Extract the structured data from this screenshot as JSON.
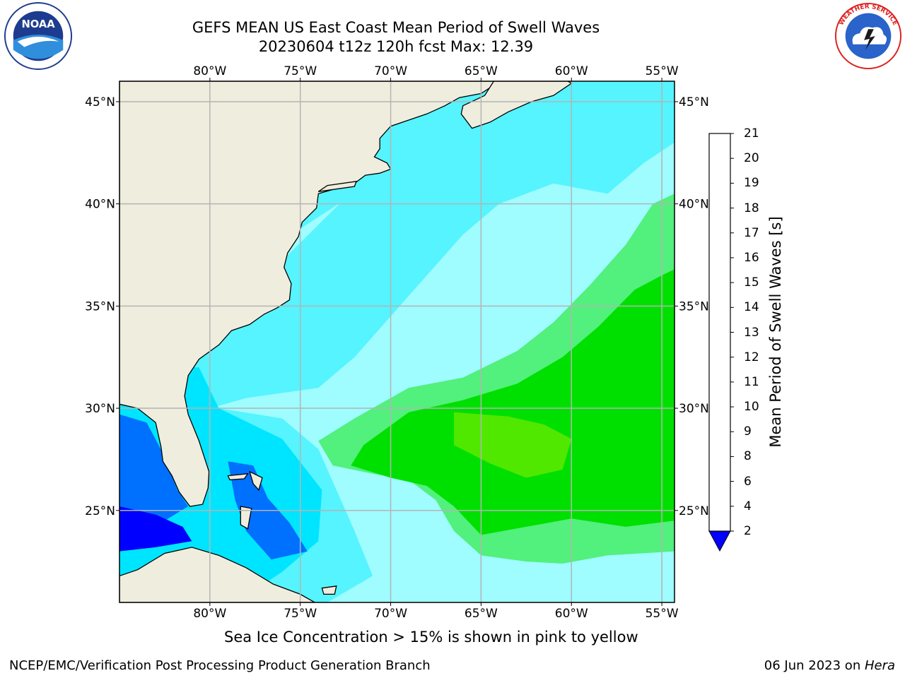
{
  "title_line1": "GEFS MEAN US East Coast Mean Period of Swell Waves",
  "title_line2": "20230604 t12z 120h fcst   Max: 12.39",
  "logos": {
    "left": {
      "name": "NOAA",
      "text": "NOAA",
      "ring": "NATIONAL OCEANIC AND ATMOSPHERIC ADMINISTRATION · U.S. DEPARTMENT OF COMMERCE"
    },
    "right": {
      "name": "National Weather Service",
      "ring": "NATIONAL WEATHER SERVICE"
    }
  },
  "map": {
    "lon_range": [
      -85,
      -54.3
    ],
    "lat_range": [
      20.5,
      46
    ],
    "lon_ticks": [
      "80°W",
      "75°W",
      "70°W",
      "65°W",
      "60°W",
      "55°W"
    ],
    "lat_ticks": [
      "25°N",
      "30°N",
      "35°N",
      "40°N",
      "45°N"
    ],
    "grid": true,
    "colors": {
      "land": "#efedde",
      "coast": "#000000",
      "grid": "#b4b4b4"
    }
  },
  "colorbar": {
    "title": "Mean Period of Swell Waves [s]",
    "labels": [
      "2",
      "4",
      "6",
      "8",
      "9",
      "10",
      "11",
      "12",
      "13",
      "14",
      "15",
      "16",
      "17",
      "18",
      "19",
      "20",
      "21"
    ],
    "colors": [
      "#0000ff",
      "#0070ff",
      "#00e5ff",
      "#55f4ff",
      "#9ffcff",
      "#52f07c",
      "#00e000",
      "#51e800",
      "#9be800",
      "#d2f000",
      "#ffff00",
      "#ffe100",
      "#ffbd00",
      "#ff9800",
      "#ff6d00",
      "#ff3a00",
      "#ff0000"
    ],
    "extend": "min"
  },
  "ice_note": "Sea Ice Concentration > 15% is shown in pink to yellow",
  "credit": "NCEP/EMC/Verification Post Processing Product Generation Branch",
  "date_prefix": "06 Jun 2023 on ",
  "date_host": "Hera"
}
